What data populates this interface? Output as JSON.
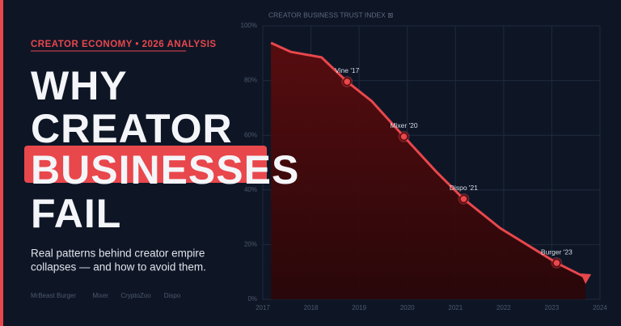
{
  "header": {
    "kicker": "CREATOR ECONOMY  •  2026 ANALYSIS",
    "title_lines": [
      "WHY",
      "CREATOR",
      "BUSINESSES",
      "FAIL"
    ],
    "subtitle_lines": [
      "Real patterns behind creator empire",
      "collapses — and how to avoid them."
    ],
    "brands": [
      "MrBeast Burger",
      "Mixer",
      "CryptoZoo",
      "Dispo"
    ]
  },
  "chart_data": {
    "type": "line",
    "title": "CREATOR BUSINESS TRUST INDEX ⊠",
    "series": [
      {
        "name": "Trust index",
        "color": "#e8474c",
        "x": [
          2017.17,
          2017.58,
          2018.22,
          2018.75,
          2019.26,
          2019.93,
          2020.6,
          2021.17,
          2021.93,
          2023.1,
          2023.7
        ],
        "values": [
          93.8,
          90.5,
          88.5,
          79.6,
          72.5,
          59.5,
          46.7,
          36.7,
          26,
          13.3,
          8
        ]
      }
    ],
    "annotations": [
      {
        "label": "Vine '17",
        "x": 2018.75,
        "value": 79.6
      },
      {
        "label": "Mixer '20",
        "x": 2019.93,
        "value": 59.5
      },
      {
        "label": "Dispo '21",
        "x": 2021.17,
        "value": 36.7
      },
      {
        "label": "Burger '23",
        "x": 2023.1,
        "value": 13.3
      }
    ],
    "xlim": [
      2017,
      2024
    ],
    "xticks": [
      2017,
      2018,
      2019,
      2020,
      2021,
      2022,
      2023,
      2024
    ],
    "ylim": [
      0,
      100
    ],
    "yticks": [
      {
        "value": 0,
        "label": "0%"
      },
      {
        "value": 20,
        "label": "20%"
      },
      {
        "value": 40,
        "label": "40%"
      },
      {
        "value": 60,
        "label": "60%"
      },
      {
        "value": 80,
        "label": "80%"
      },
      {
        "value": 100,
        "label": "100%"
      }
    ],
    "grid": true
  }
}
